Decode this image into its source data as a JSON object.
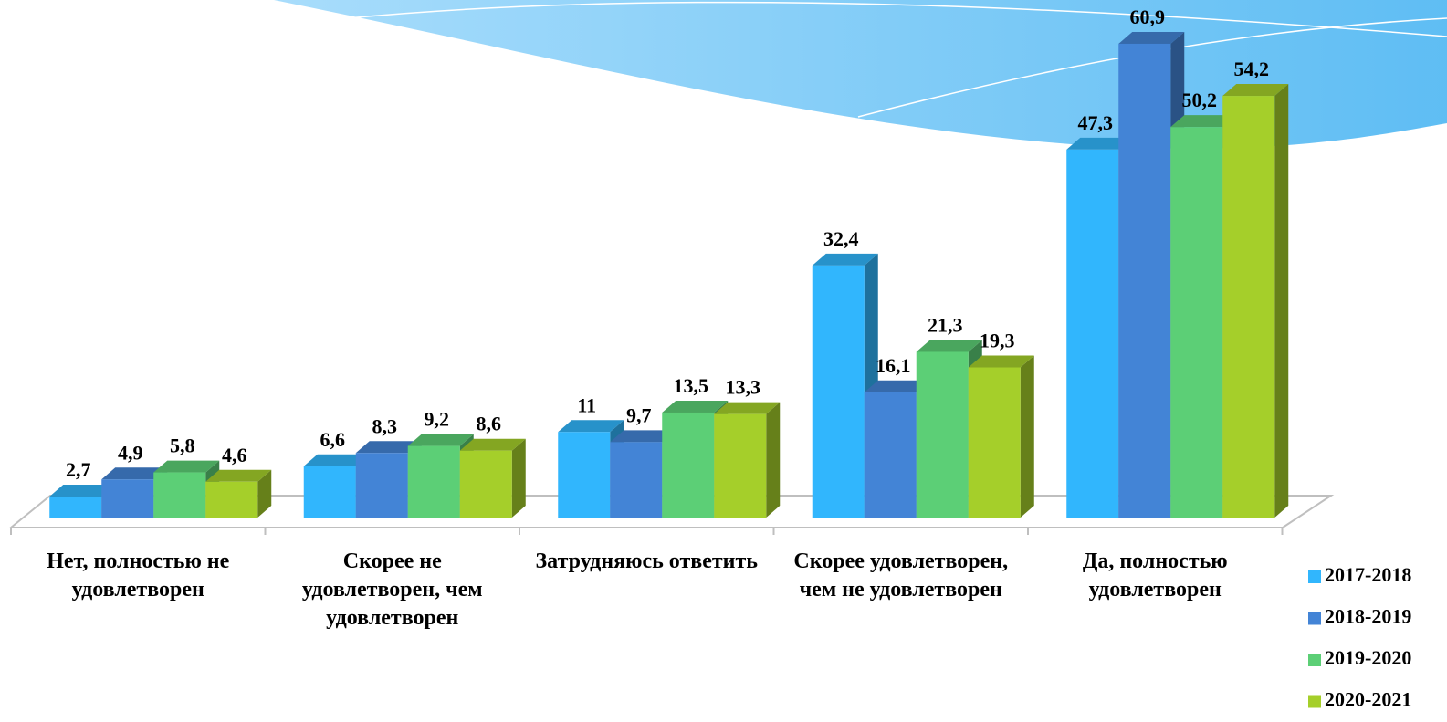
{
  "chart_data": {
    "type": "bar3d",
    "categories": [
      "Нет, полностью не удовлетворен",
      "Скорее не удовлетворен, чем удовлетворен",
      "Затрудняюсь ответить",
      "Скорее удовлетворен, чем не удовлетворен",
      "Да, полностью удовлетворен"
    ],
    "series": [
      {
        "name": "2017-2018",
        "color": "#31b6fd",
        "values": [
          2.7,
          6.6,
          11,
          32.4,
          47.3
        ],
        "value_labels": [
          "2,7",
          "6,6",
          "11",
          "32,4",
          "47,3"
        ]
      },
      {
        "name": "2018-2019",
        "color": "#4384d6",
        "values": [
          4.9,
          8.3,
          9.7,
          16.1,
          60.9
        ],
        "value_labels": [
          "4,9",
          "8,3",
          "9,7",
          "16,1",
          "60,9"
        ]
      },
      {
        "name": "2019-2020",
        "color": "#5ccf76",
        "values": [
          5.8,
          9.2,
          13.5,
          21.3,
          50.2
        ],
        "value_labels": [
          "5,8",
          "9,2",
          "13,5",
          "21,3",
          "50,2"
        ]
      },
      {
        "name": "2020-2021",
        "color": "#a5cf2a",
        "values": [
          4.6,
          8.6,
          13.3,
          19.3,
          54.2
        ],
        "value_labels": [
          "4,6",
          "8,6",
          "13,3",
          "19,3",
          "54,2"
        ]
      }
    ],
    "ylim": [
      0,
      65
    ],
    "legend": "right"
  }
}
